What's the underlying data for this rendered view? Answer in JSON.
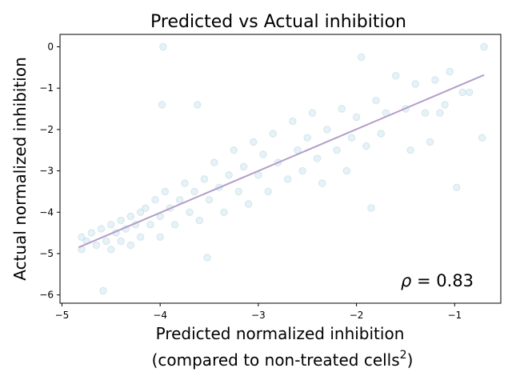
{
  "chart_data": {
    "type": "scatter",
    "title": "Predicted vs Actual inhibition",
    "xlabel_line1": "Predicted normalized inhibition",
    "xlabel_line2_main": "(compared to non-treated cells",
    "xlabel_line2_sup": "2",
    "xlabel_line2_end": ")",
    "ylabel": "Actual normalized inhibition",
    "annotation_symbol": "ρ",
    "annotation_value": " = 0.83",
    "xlim": [
      -5.02,
      -0.53
    ],
    "ylim": [
      -6.2,
      0.3
    ],
    "xticks": [
      -5,
      -4,
      -3,
      -2,
      -1
    ],
    "yticks": [
      0,
      -1,
      -2,
      -3,
      -4,
      -5,
      -6
    ],
    "xtick_labels": [
      "−5",
      "−4",
      "−3",
      "−2",
      "−1"
    ],
    "ytick_labels": [
      "0",
      "−1",
      "−2",
      "−3",
      "−4",
      "−5",
      "−6"
    ],
    "grid": false,
    "point_color": "#9ecadc",
    "point_alpha": 0.25,
    "line_color": "#b39ec9",
    "fit_line": [
      [
        -4.83,
        -4.85
      ],
      [
        -0.7,
        -0.68
      ]
    ],
    "series": [
      {
        "values": [
          [
            -4.8,
            -4.6
          ],
          [
            -4.8,
            -4.9
          ],
          [
            -4.75,
            -4.7
          ],
          [
            -4.7,
            -4.5
          ],
          [
            -4.65,
            -4.8
          ],
          [
            -4.6,
            -4.4
          ],
          [
            -4.55,
            -4.7
          ],
          [
            -4.5,
            -4.3
          ],
          [
            -4.5,
            -4.9
          ],
          [
            -4.45,
            -4.5
          ],
          [
            -4.4,
            -4.2
          ],
          [
            -4.4,
            -4.7
          ],
          [
            -4.35,
            -4.4
          ],
          [
            -4.3,
            -4.1
          ],
          [
            -4.3,
            -4.8
          ],
          [
            -4.25,
            -4.3
          ],
          [
            -4.2,
            -4.0
          ],
          [
            -4.2,
            -4.6
          ],
          [
            -4.15,
            -3.9
          ],
          [
            -4.1,
            -4.3
          ],
          [
            -4.05,
            -3.7
          ],
          [
            -4.0,
            -4.1
          ],
          [
            -4.0,
            -4.6
          ],
          [
            -3.95,
            -3.5
          ],
          [
            -3.9,
            -3.9
          ],
          [
            -3.85,
            -4.3
          ],
          [
            -3.8,
            -3.7
          ],
          [
            -3.75,
            -3.3
          ],
          [
            -3.7,
            -4.0
          ],
          [
            -3.65,
            -3.5
          ],
          [
            -3.6,
            -4.2
          ],
          [
            -3.55,
            -3.2
          ],
          [
            -3.5,
            -3.7
          ],
          [
            -3.45,
            -2.8
          ],
          [
            -3.4,
            -3.4
          ],
          [
            -3.35,
            -4.0
          ],
          [
            -3.3,
            -3.1
          ],
          [
            -3.25,
            -2.5
          ],
          [
            -3.2,
            -3.5
          ],
          [
            -3.15,
            -2.9
          ],
          [
            -3.1,
            -3.8
          ],
          [
            -3.05,
            -2.3
          ],
          [
            -3.0,
            -3.1
          ],
          [
            -2.95,
            -2.6
          ],
          [
            -2.9,
            -3.5
          ],
          [
            -2.85,
            -2.1
          ],
          [
            -2.8,
            -2.8
          ],
          [
            -2.7,
            -3.2
          ],
          [
            -2.65,
            -1.8
          ],
          [
            -2.6,
            -2.5
          ],
          [
            -2.55,
            -3.0
          ],
          [
            -2.5,
            -2.2
          ],
          [
            -2.45,
            -1.6
          ],
          [
            -2.4,
            -2.7
          ],
          [
            -2.35,
            -3.3
          ],
          [
            -2.3,
            -2.0
          ],
          [
            -2.2,
            -2.5
          ],
          [
            -2.15,
            -1.5
          ],
          [
            -2.1,
            -3.0
          ],
          [
            -2.05,
            -2.2
          ],
          [
            -2.0,
            -1.7
          ],
          [
            -1.95,
            -0.25
          ],
          [
            -1.9,
            -2.4
          ],
          [
            -1.85,
            -3.9
          ],
          [
            -1.8,
            -1.3
          ],
          [
            -1.75,
            -2.1
          ],
          [
            -1.7,
            -1.6
          ],
          [
            -1.6,
            -0.7
          ],
          [
            -1.5,
            -1.5
          ],
          [
            -1.45,
            -2.5
          ],
          [
            -1.4,
            -0.9
          ],
          [
            -1.3,
            -1.6
          ],
          [
            -1.25,
            -2.3
          ],
          [
            -1.2,
            -0.8
          ],
          [
            -1.15,
            -1.6
          ],
          [
            -1.1,
            -1.4
          ],
          [
            -1.05,
            -0.6
          ],
          [
            -0.98,
            -3.4
          ],
          [
            -0.92,
            -1.1
          ],
          [
            -0.85,
            -1.1
          ],
          [
            -0.72,
            -2.2
          ],
          [
            -0.7,
            0.0
          ],
          [
            -4.58,
            -5.9
          ],
          [
            -3.97,
            0.0
          ],
          [
            -3.52,
            -5.1
          ],
          [
            -3.98,
            -1.4
          ],
          [
            -3.62,
            -1.4
          ]
        ]
      }
    ]
  }
}
